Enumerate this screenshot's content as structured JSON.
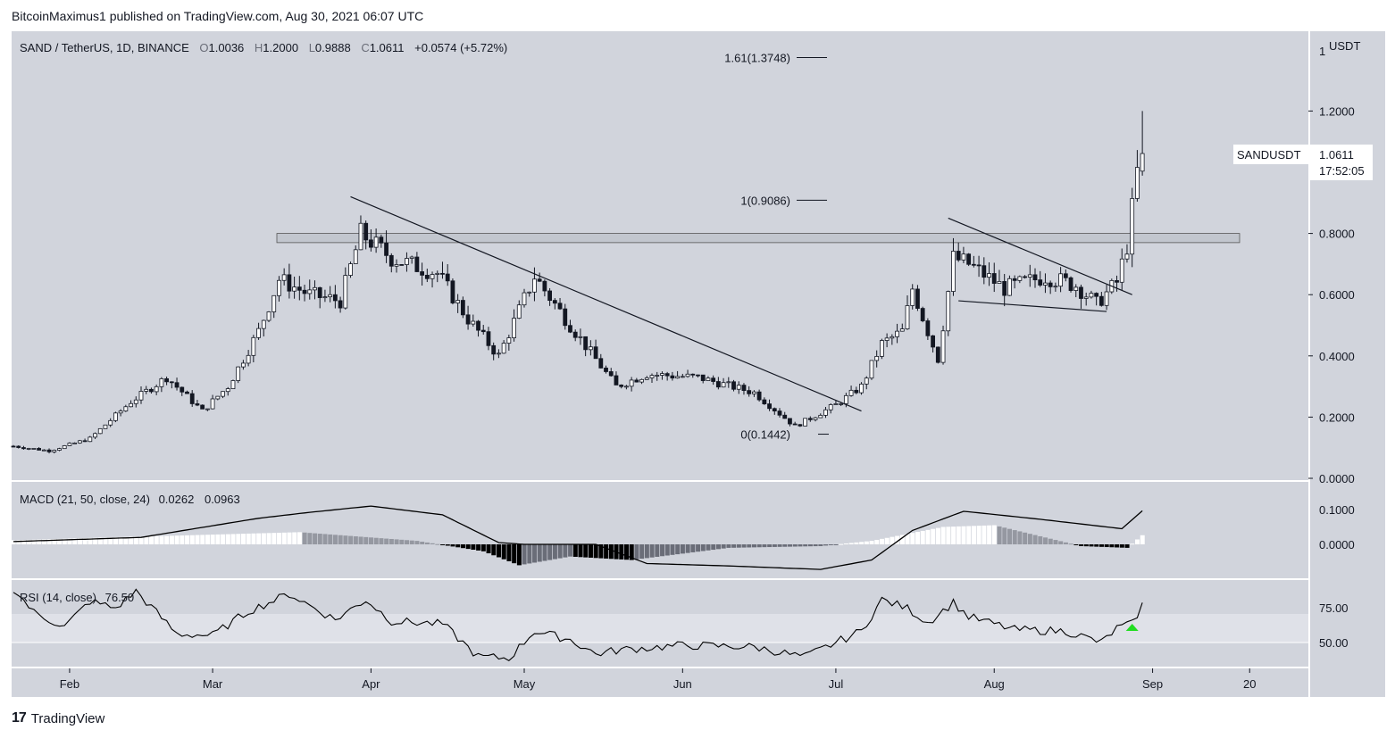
{
  "header": {
    "published": "BitcoinMaximus1 published on TradingView.com, Aug 30, 2021 06:07 UTC"
  },
  "footer": {
    "brand": "TradingView",
    "logo_glyph": "17"
  },
  "legend": {
    "symbol": "SAND / TetherUS, 1D, BINANCE",
    "o_label": "O",
    "o_value": "1.0036",
    "h_label": "H",
    "h_value": "1.2000",
    "l_label": "L",
    "l_value": "0.9888",
    "c_label": "C",
    "c_value": "1.0611",
    "change": "+0.0574 (+5.72%)"
  },
  "macd_legend": {
    "label": "MACD (21, 50, close, 24)",
    "v1": "0.0262",
    "v2": "0.0963"
  },
  "rsi_legend": {
    "label": "RSI (14, close)",
    "value": "76.50"
  },
  "price_tag": {
    "symbol": "SANDUSDT",
    "price": "1.0611",
    "countdown": "17:52:05"
  },
  "colors": {
    "pane_bg": "#d1d4dc",
    "candle": "#131722",
    "rsi_band": "#dfe1e8",
    "signal_arrow": "#22dd22"
  },
  "chart_data": [
    {
      "type": "candlestick",
      "title": "SAND / TetherUS, 1D, BINANCE",
      "y_unit": "USDT",
      "ylim": [
        0.0,
        1.38
      ],
      "y_ticks": [
        "0.0000",
        "0.2000",
        "0.4000",
        "0.6000",
        "0.8000",
        "1.2000"
      ],
      "y_top_label": "1",
      "y_unit_label": "USDT",
      "x_ticks": [
        "Feb",
        "Mar",
        "Apr",
        "May",
        "Jun",
        "Jul",
        "Aug",
        "Sep",
        "20"
      ],
      "resistance_zone": [
        0.77,
        0.8
      ],
      "fib_levels": [
        {
          "label": "1.61(1.3748)",
          "value": 1.3748
        },
        {
          "label": "1(0.9086)",
          "value": 0.9086
        },
        {
          "label": "0(0.1442)",
          "value": 0.1442
        }
      ],
      "trendlines_price": [
        {
          "name": "main-descending-resistance",
          "from": [
            "2021-03-28",
            0.92
          ],
          "to": [
            "2021-07-06",
            0.22
          ]
        },
        {
          "name": "wedge-upper",
          "from": [
            "2021-07-23",
            0.85
          ],
          "to": [
            "2021-08-28",
            0.6
          ]
        },
        {
          "name": "wedge-lower",
          "from": [
            "2021-07-25",
            0.58
          ],
          "to": [
            "2021-08-23",
            0.545
          ]
        }
      ],
      "anchors": [
        {
          "date": "2021-01-21",
          "price": 0.105
        },
        {
          "date": "2021-01-28",
          "price": 0.09
        },
        {
          "date": "2021-02-05",
          "price": 0.13
        },
        {
          "date": "2021-02-13",
          "price": 0.25
        },
        {
          "date": "2021-02-20",
          "price": 0.33
        },
        {
          "date": "2021-02-27",
          "price": 0.22
        },
        {
          "date": "2021-03-04",
          "price": 0.3
        },
        {
          "date": "2021-03-10",
          "price": 0.48
        },
        {
          "date": "2021-03-14",
          "price": 0.65
        },
        {
          "date": "2021-03-20",
          "price": 0.6
        },
        {
          "date": "2021-03-26",
          "price": 0.58
        },
        {
          "date": "2021-03-30",
          "price": 0.8
        },
        {
          "date": "2021-04-05",
          "price": 0.72
        },
        {
          "date": "2021-04-14",
          "price": 0.67
        },
        {
          "date": "2021-04-20",
          "price": 0.52
        },
        {
          "date": "2021-04-26",
          "price": 0.4
        },
        {
          "date": "2021-05-03",
          "price": 0.66
        },
        {
          "date": "2021-05-10",
          "price": 0.5
        },
        {
          "date": "2021-05-19",
          "price": 0.3
        },
        {
          "date": "2021-05-25",
          "price": 0.34
        },
        {
          "date": "2021-06-04",
          "price": 0.33
        },
        {
          "date": "2021-06-15",
          "price": 0.28
        },
        {
          "date": "2021-06-23",
          "price": 0.17
        },
        {
          "date": "2021-07-01",
          "price": 0.24
        },
        {
          "date": "2021-07-06",
          "price": 0.3
        },
        {
          "date": "2021-07-10",
          "price": 0.44
        },
        {
          "date": "2021-07-14",
          "price": 0.48
        },
        {
          "date": "2021-07-16",
          "price": 0.62
        },
        {
          "date": "2021-07-19",
          "price": 0.48
        },
        {
          "date": "2021-07-21",
          "price": 0.39
        },
        {
          "date": "2021-07-24",
          "price": 0.72
        },
        {
          "date": "2021-07-27",
          "price": 0.7
        },
        {
          "date": "2021-08-03",
          "price": 0.62
        },
        {
          "date": "2021-08-11",
          "price": 0.66
        },
        {
          "date": "2021-08-17",
          "price": 0.63
        },
        {
          "date": "2021-08-21",
          "price": 0.57
        },
        {
          "date": "2021-08-25",
          "price": 0.64
        },
        {
          "date": "2021-08-27",
          "price": 0.76
        },
        {
          "date": "2021-08-29",
          "price": 1.0
        },
        {
          "date": "2021-08-30",
          "price": 1.0611
        }
      ]
    },
    {
      "type": "histogram+line",
      "title": "MACD (21, 50, close, 24)",
      "y_ticks": [
        "0.1000",
        "0.0000"
      ],
      "line_points": [
        [
          "2021-01-21",
          0.008
        ],
        [
          "2021-02-15",
          0.02
        ],
        [
          "2021-03-10",
          0.075
        ],
        [
          "2021-03-20",
          0.092
        ],
        [
          "2021-04-01",
          0.11
        ],
        [
          "2021-04-15",
          0.085
        ],
        [
          "2021-04-26",
          0.005
        ],
        [
          "2021-05-01",
          0.0
        ],
        [
          "2021-05-15",
          0.0
        ],
        [
          "2021-05-25",
          -0.055
        ],
        [
          "2021-06-10",
          -0.062
        ],
        [
          "2021-06-28",
          -0.072
        ],
        [
          "2021-07-08",
          -0.045
        ],
        [
          "2021-07-16",
          0.04
        ],
        [
          "2021-07-26",
          0.095
        ],
        [
          "2021-08-10",
          0.072
        ],
        [
          "2021-08-26",
          0.045
        ],
        [
          "2021-08-30",
          0.0963
        ]
      ],
      "histogram_points": [
        [
          "2021-01-21",
          0.012
        ],
        [
          "2021-03-18",
          0.035
        ],
        [
          "2021-04-10",
          0.01
        ],
        [
          "2021-04-23",
          -0.02
        ],
        [
          "2021-04-30",
          -0.06
        ],
        [
          "2021-05-10",
          -0.035
        ],
        [
          "2021-05-22",
          -0.045
        ],
        [
          "2021-06-10",
          -0.01
        ],
        [
          "2021-06-28",
          -0.005
        ],
        [
          "2021-07-08",
          0.01
        ],
        [
          "2021-07-22",
          0.05
        ],
        [
          "2021-08-01",
          0.055
        ],
        [
          "2021-08-18",
          -0.005
        ],
        [
          "2021-08-27",
          -0.01
        ],
        [
          "2021-08-30",
          0.0262
        ]
      ]
    },
    {
      "type": "line",
      "title": "RSI (14, close)",
      "y_ticks": [
        "75.00",
        "50.00"
      ],
      "band": [
        50,
        70
      ],
      "points": [
        [
          "2021-01-21",
          88
        ],
        [
          "2021-01-25",
          71
        ],
        [
          "2021-01-31",
          61
        ],
        [
          "2021-02-05",
          79
        ],
        [
          "2021-02-10",
          74
        ],
        [
          "2021-02-14",
          86
        ],
        [
          "2021-02-22",
          56
        ],
        [
          "2021-03-01",
          55
        ],
        [
          "2021-03-08",
          72
        ],
        [
          "2021-03-16",
          84
        ],
        [
          "2021-03-25",
          66
        ],
        [
          "2021-03-31",
          80
        ],
        [
          "2021-04-05",
          65
        ],
        [
          "2021-04-15",
          63
        ],
        [
          "2021-04-22",
          40
        ],
        [
          "2021-04-28",
          39
        ],
        [
          "2021-05-03",
          58
        ],
        [
          "2021-05-10",
          52
        ],
        [
          "2021-05-15",
          42
        ],
        [
          "2021-05-20",
          45
        ],
        [
          "2021-06-01",
          48
        ],
        [
          "2021-06-15",
          47
        ],
        [
          "2021-06-23",
          41
        ],
        [
          "2021-06-25",
          40
        ],
        [
          "2021-07-01",
          50
        ],
        [
          "2021-07-06",
          58
        ],
        [
          "2021-07-10",
          80
        ],
        [
          "2021-07-15",
          74
        ],
        [
          "2021-07-19",
          64
        ],
        [
          "2021-07-24",
          78
        ],
        [
          "2021-07-27",
          68
        ],
        [
          "2021-08-05",
          59
        ],
        [
          "2021-08-15",
          58
        ],
        [
          "2021-08-22",
          50
        ],
        [
          "2021-08-25",
          60
        ],
        [
          "2021-08-28",
          63
        ],
        [
          "2021-08-30",
          76.5
        ]
      ],
      "signal_marker": "2021-08-28"
    }
  ]
}
